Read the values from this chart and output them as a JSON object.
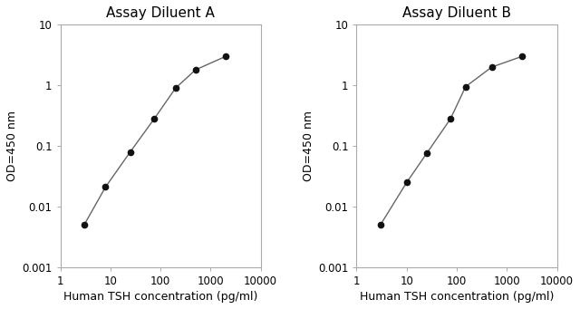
{
  "left": {
    "title": "Assay Diluent A",
    "x": [
      3,
      8,
      25,
      75,
      200,
      500,
      2000
    ],
    "y": [
      0.005,
      0.021,
      0.08,
      0.28,
      0.9,
      1.8,
      3.0
    ]
  },
  "right": {
    "title": "Assay Diluent B",
    "x": [
      3,
      10,
      25,
      75,
      150,
      500,
      2000
    ],
    "y": [
      0.005,
      0.025,
      0.075,
      0.28,
      0.95,
      2.0,
      3.0
    ]
  },
  "xlabel": "Human TSH concentration (pg/ml)",
  "ylabel": "OD=450 nm",
  "xlim": [
    1,
    10000
  ],
  "ylim": [
    0.001,
    10
  ],
  "yticks": [
    0.001,
    0.01,
    0.1,
    1,
    10
  ],
  "ytick_labels": [
    "0.001",
    "0.01",
    "0.1",
    "1",
    "10"
  ],
  "xticks": [
    1,
    10,
    100,
    1000,
    10000
  ],
  "xtick_labels": [
    "1",
    "10",
    "100",
    "1000",
    "10000"
  ],
  "line_color": "#666666",
  "marker_color": "#111111",
  "marker_size": 4.5,
  "line_width": 1.0,
  "bg_color": "#ffffff",
  "spine_color": "#aaaaaa",
  "title_fontsize": 11,
  "label_fontsize": 9,
  "tick_fontsize": 8.5
}
